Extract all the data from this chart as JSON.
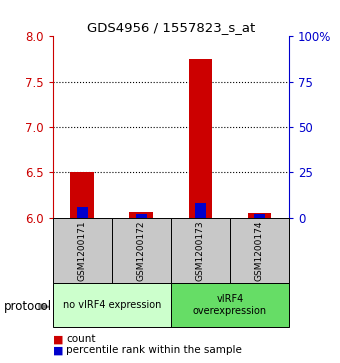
{
  "title": "GDS4956 / 1557823_s_at",
  "samples": [
    "GSM1200171",
    "GSM1200172",
    "GSM1200173",
    "GSM1200174"
  ],
  "red_values": [
    6.5,
    6.06,
    7.75,
    6.05
  ],
  "blue_values_pct": [
    6,
    2,
    8,
    2
  ],
  "ylim_left": [
    6,
    8
  ],
  "ylim_right": [
    0,
    100
  ],
  "yticks_left": [
    6,
    6.5,
    7,
    7.5,
    8
  ],
  "yticks_right": [
    0,
    25,
    50,
    75,
    100
  ],
  "ytick_labels_right": [
    "0",
    "25",
    "50",
    "75",
    "100%"
  ],
  "red_color": "#cc0000",
  "blue_color": "#0000cc",
  "bar_width": 0.4,
  "blue_bar_width": 0.18,
  "groups": [
    {
      "label": "no vIRF4 expression",
      "samples": [
        0,
        1
      ],
      "color": "#ccffcc"
    },
    {
      "label": "vIRF4\noverexpression",
      "samples": [
        2,
        3
      ],
      "color": "#66dd66"
    }
  ],
  "protocol_label": "protocol",
  "legend_items": [
    {
      "color": "#cc0000",
      "label": "count"
    },
    {
      "color": "#0000cc",
      "label": "percentile rank within the sample"
    }
  ],
  "background_color": "#ffffff",
  "axis_box_color": "#cccccc",
  "sample_box_color": "#c8c8c8"
}
